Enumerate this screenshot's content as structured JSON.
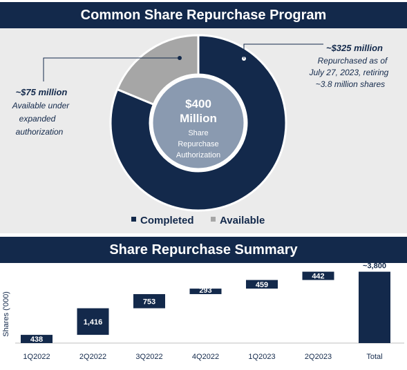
{
  "colors": {
    "navy": "#13294b",
    "gray": "#a6a6a6",
    "center_fill": "#8a9ab0",
    "panel_bg": "#ebebeb"
  },
  "program": {
    "title": "Common Share Repurchase Program",
    "center_amount": "$400",
    "center_unit": "Million",
    "center_caption": [
      "Share",
      "Repurchase",
      "Authorization"
    ],
    "callout_right": {
      "amount": "~$325 million",
      "lines": [
        "Repurchased as of",
        "July 27, 2023, retiring",
        "~3.8 million shares"
      ]
    },
    "callout_left": {
      "amount": "~$75 million",
      "lines": [
        "Available under",
        "expanded",
        "authorization"
      ]
    },
    "legend": [
      {
        "label": "Completed",
        "color": "#13294b"
      },
      {
        "label": "Available",
        "color": "#a6a6a6"
      }
    ]
  },
  "summary": {
    "title": "Share Repurchase Summary",
    "ylabel": "Shares ('000)"
  },
  "chart_data": [
    {
      "type": "pie",
      "labels": [
        "Completed",
        "Available"
      ],
      "values": [
        325,
        75
      ],
      "colors": [
        "#13294b",
        "#a6a6a6"
      ],
      "legend_position": "bottom"
    },
    {
      "type": "bar",
      "subtype": "waterfall",
      "categories": [
        "1Q2022",
        "2Q2022",
        "3Q2022",
        "4Q2022",
        "1Q2023",
        "2Q2023",
        "Total"
      ],
      "values": [
        438,
        1416,
        753,
        293,
        459,
        442,
        3800
      ],
      "labels": [
        "438",
        "1,416",
        "753",
        "293",
        "459",
        "442",
        "~3,800"
      ],
      "is_total": [
        false,
        false,
        false,
        false,
        false,
        false,
        true
      ],
      "ylabel": "Shares ('000)",
      "ylim": [
        0,
        4300
      ]
    }
  ]
}
